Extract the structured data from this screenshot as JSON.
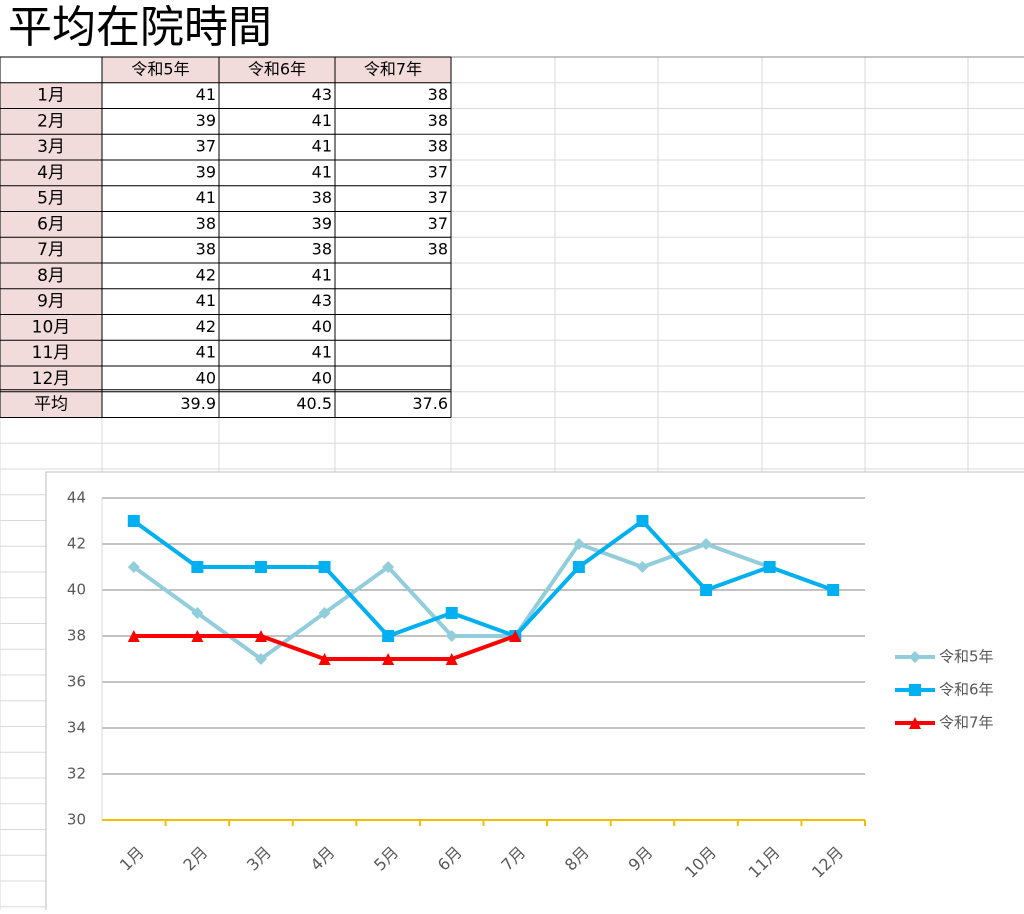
{
  "title": "平均在院時間",
  "table": {
    "columns": [
      "令和5年",
      "令和6年",
      "令和7年"
    ],
    "rows": [
      {
        "label": "1月",
        "values": [
          41,
          43,
          38
        ]
      },
      {
        "label": "2月",
        "values": [
          39,
          41,
          38
        ]
      },
      {
        "label": "3月",
        "values": [
          37,
          41,
          38
        ]
      },
      {
        "label": "4月",
        "values": [
          39,
          41,
          37
        ]
      },
      {
        "label": "5月",
        "values": [
          41,
          38,
          37
        ]
      },
      {
        "label": "6月",
        "values": [
          38,
          39,
          37
        ]
      },
      {
        "label": "7月",
        "values": [
          38,
          38,
          38
        ]
      },
      {
        "label": "8月",
        "values": [
          42,
          41,
          null
        ]
      },
      {
        "label": "9月",
        "values": [
          41,
          43,
          null
        ]
      },
      {
        "label": "10月",
        "values": [
          42,
          40,
          null
        ]
      },
      {
        "label": "11月",
        "values": [
          41,
          41,
          null
        ]
      },
      {
        "label": "12月",
        "values": [
          40,
          40,
          null
        ]
      }
    ],
    "average": {
      "label": "平均",
      "values": [
        39.9,
        40.5,
        37.6
      ]
    }
  },
  "chart_data": {
    "type": "line",
    "categories": [
      "1月",
      "2月",
      "3月",
      "4月",
      "5月",
      "6月",
      "7月",
      "8月",
      "9月",
      "10月",
      "11月",
      "12月"
    ],
    "series": [
      {
        "name": "令和5年",
        "color": "#92cddc",
        "marker": "diamond",
        "values": [
          41,
          39,
          37,
          39,
          41,
          38,
          38,
          42,
          41,
          42,
          41,
          40
        ]
      },
      {
        "name": "令和6年",
        "color": "#00b0f0",
        "marker": "square",
        "values": [
          43,
          41,
          41,
          41,
          38,
          39,
          38,
          41,
          43,
          40,
          41,
          40
        ]
      },
      {
        "name": "令和7年",
        "color": "#ff0000",
        "marker": "triangle",
        "values": [
          38,
          38,
          38,
          37,
          37,
          37,
          38,
          null,
          null,
          null,
          null,
          null
        ]
      }
    ],
    "ylim": [
      30,
      44
    ],
    "yticks": [
      30,
      32,
      34,
      36,
      38,
      40,
      42,
      44
    ],
    "grid": true,
    "legend": "right"
  }
}
